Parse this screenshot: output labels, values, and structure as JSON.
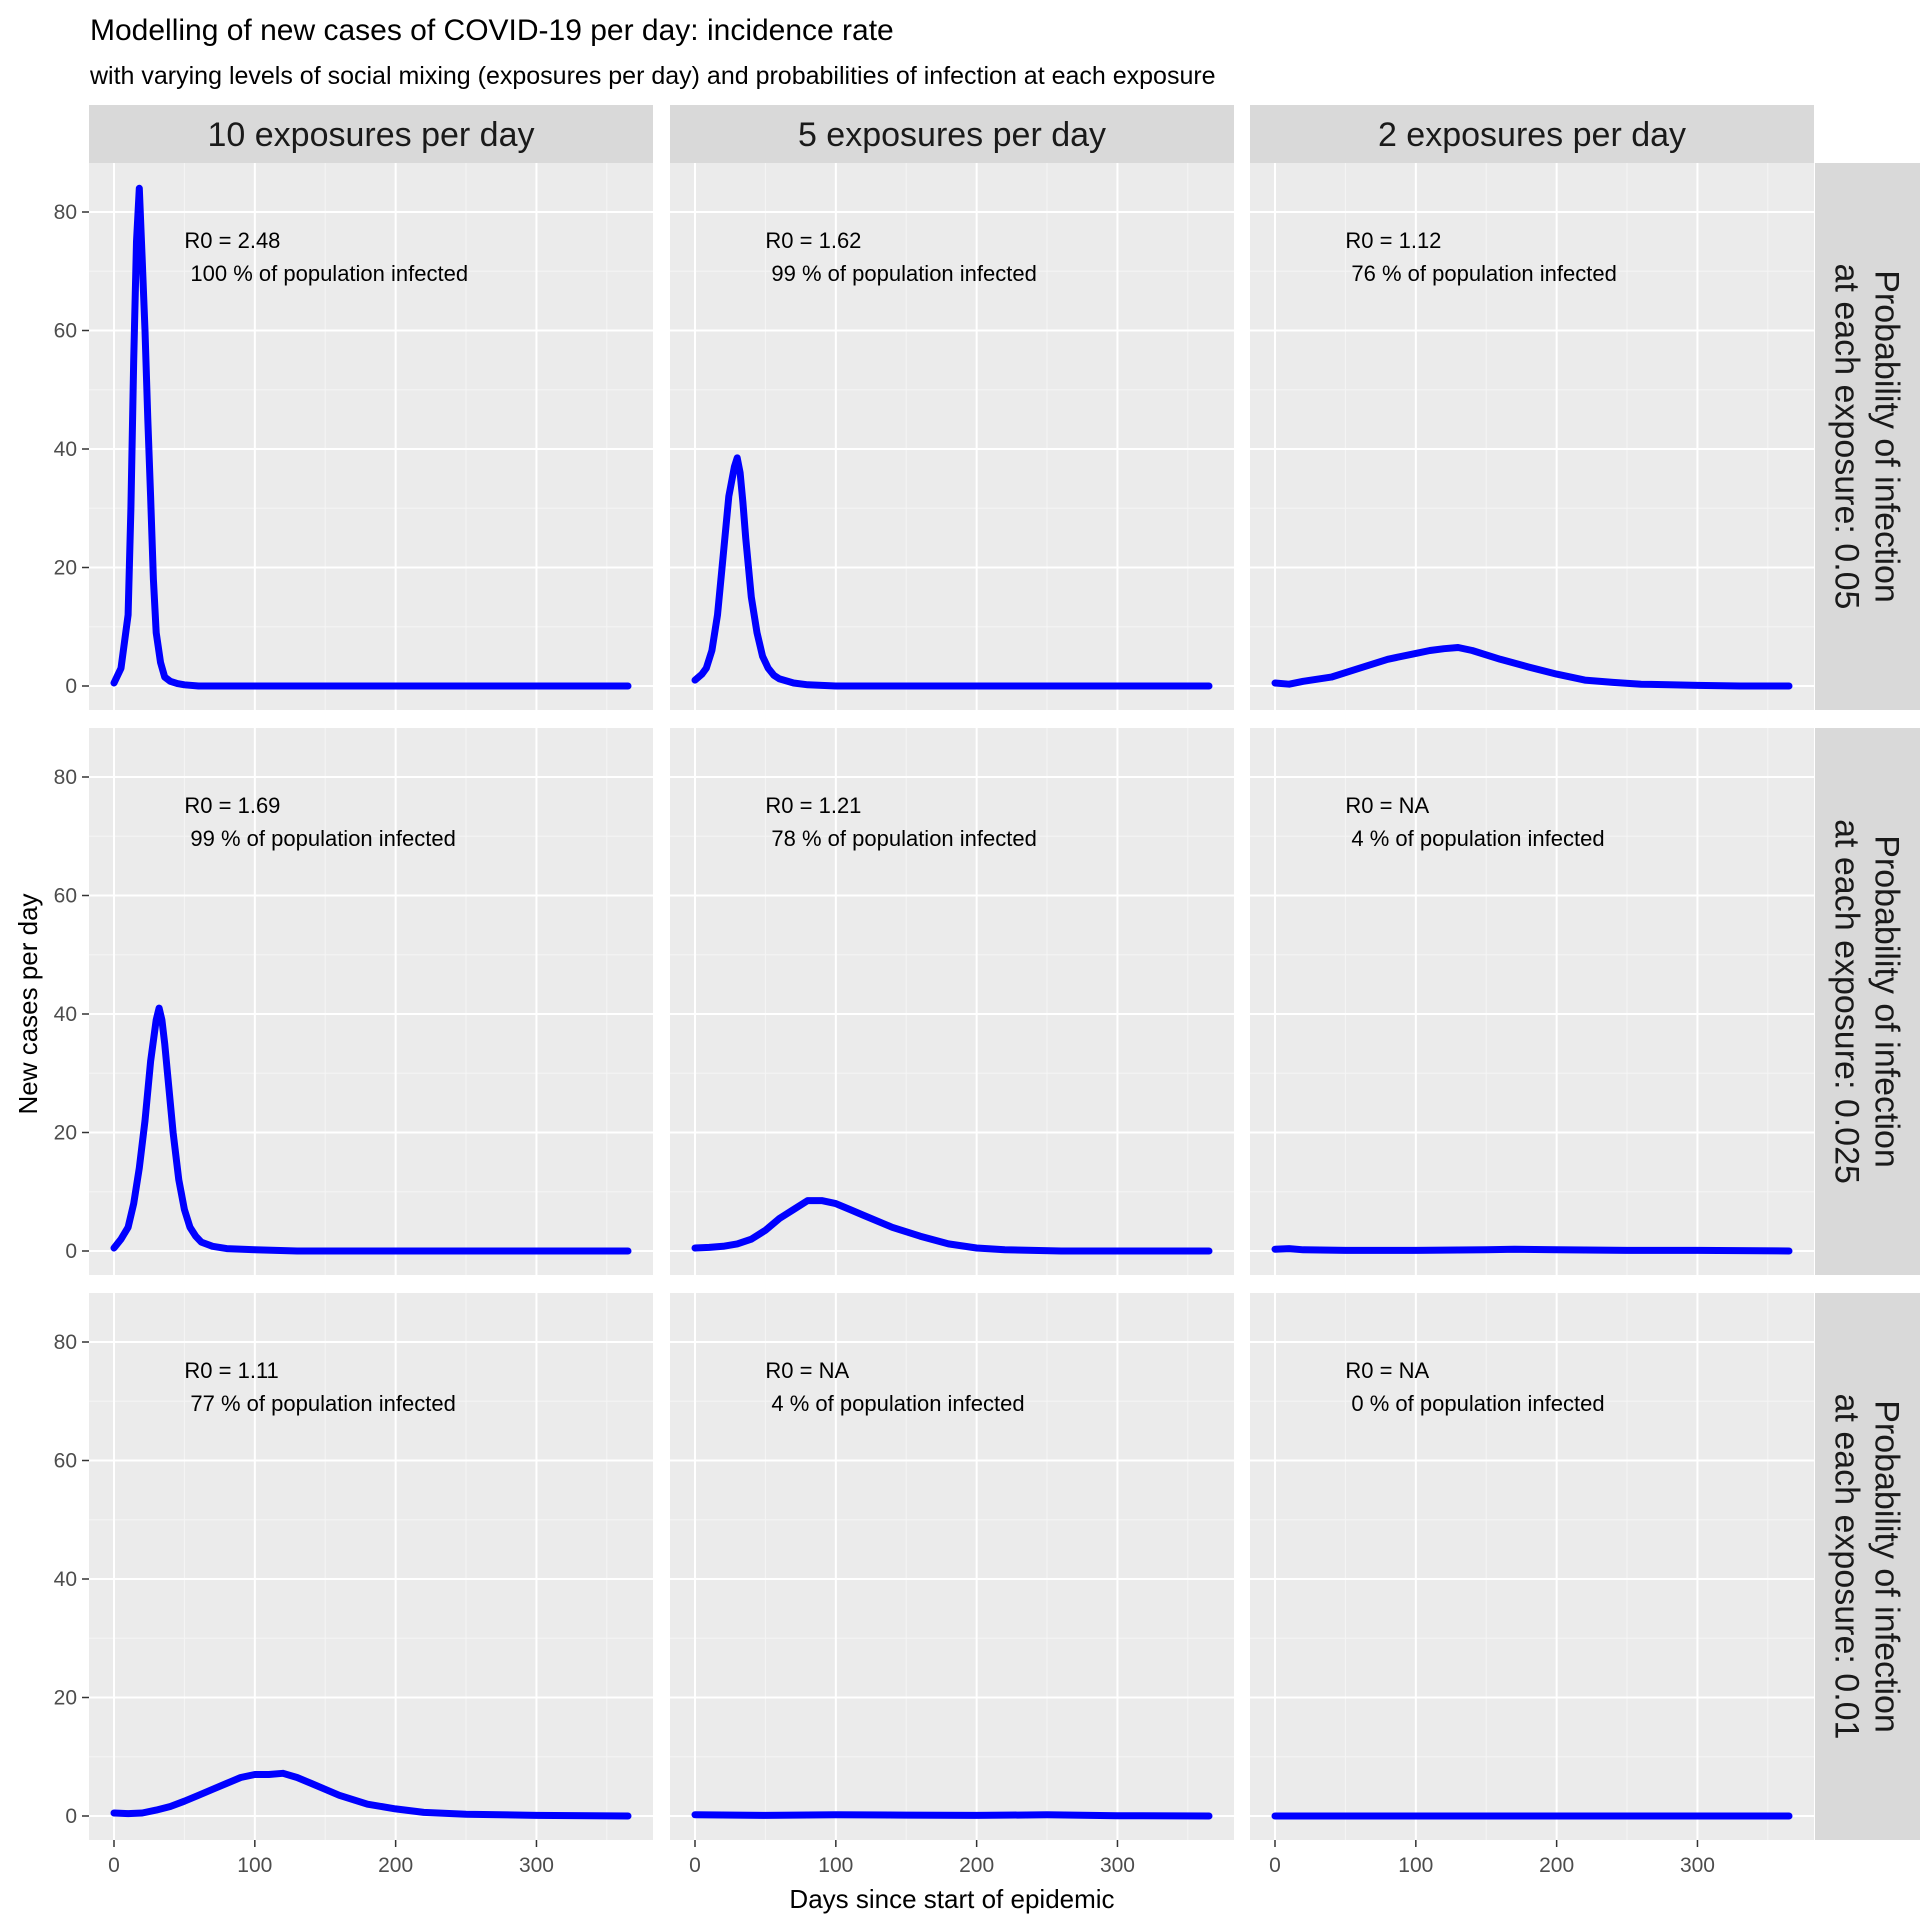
{
  "chart_data": {
    "type": "line",
    "title": "Modelling of new cases of COVID-19 per day: incidence rate",
    "subtitle": "with varying levels of social mixing (exposures per day) and probabilities of infection at each exposure",
    "xlabel": "Days since start of epidemic",
    "ylabel": "New cases per day",
    "xlim": [
      0,
      365
    ],
    "ylim": [
      0,
      85
    ],
    "x_ticks": [
      0,
      100,
      200,
      300
    ],
    "y_ticks": [
      0,
      20,
      40,
      60,
      80
    ],
    "grid": true,
    "line_color": "#0000ff",
    "panel_background": "#ebebeb",
    "strip_background": "#d9d9d9",
    "columns": [
      "10 exposures per day",
      "5 exposures per day",
      "2 exposures per day"
    ],
    "rows": [
      [
        "Probability of infection",
        "at each exposure: 0.05"
      ],
      [
        "Probability of infection",
        "at each exposure: 0.025"
      ],
      [
        "Probability of infection",
        "at each exposure: 0.01"
      ]
    ],
    "panels": [
      {
        "row": 0,
        "col": 0,
        "r0_label": "R0 = 2.48",
        "infected_label": "100 % of population infected",
        "x": [
          0,
          5,
          10,
          12,
          14,
          16,
          18,
          20,
          22,
          24,
          26,
          28,
          30,
          33,
          36,
          40,
          45,
          50,
          60,
          80,
          120,
          200,
          365
        ],
        "y": [
          0.5,
          3,
          12,
          30,
          55,
          75,
          84,
          72,
          60,
          45,
          32,
          18,
          9,
          4,
          1.5,
          0.8,
          0.4,
          0.2,
          0,
          0,
          0,
          0,
          0
        ]
      },
      {
        "row": 0,
        "col": 1,
        "r0_label": "R0 = 1.62",
        "infected_label": "99 % of population infected",
        "x": [
          0,
          5,
          8,
          12,
          16,
          20,
          24,
          28,
          30,
          32,
          34,
          36,
          40,
          44,
          48,
          52,
          56,
          60,
          70,
          80,
          100,
          150,
          365
        ],
        "y": [
          1,
          2,
          3,
          6,
          12,
          22,
          32,
          37,
          38.5,
          36,
          31,
          25,
          15,
          9,
          5,
          3,
          1.8,
          1.2,
          0.5,
          0.2,
          0,
          0,
          0
        ]
      },
      {
        "row": 0,
        "col": 2,
        "r0_label": "R0 = 1.12",
        "infected_label": "76 % of population infected",
        "x": [
          0,
          10,
          20,
          40,
          60,
          80,
          100,
          110,
          120,
          130,
          140,
          160,
          180,
          200,
          220,
          240,
          260,
          280,
          300,
          330,
          365
        ],
        "y": [
          0.5,
          0.3,
          0.8,
          1.5,
          3,
          4.5,
          5.5,
          6,
          6.3,
          6.5,
          6,
          4.5,
          3.2,
          2,
          1,
          0.6,
          0.3,
          0.2,
          0.1,
          0,
          0
        ]
      },
      {
        "row": 1,
        "col": 0,
        "r0_label": "R0 = 1.69",
        "infected_label": "99 % of population infected",
        "x": [
          0,
          5,
          10,
          14,
          18,
          22,
          26,
          30,
          32,
          34,
          36,
          38,
          42,
          46,
          50,
          54,
          58,
          62,
          70,
          80,
          100,
          130,
          365
        ],
        "y": [
          0.5,
          2,
          4,
          8,
          14,
          22,
          32,
          39,
          41,
          39,
          35,
          30,
          20,
          12,
          7,
          4,
          2.5,
          1.5,
          0.8,
          0.4,
          0.2,
          0,
          0
        ]
      },
      {
        "row": 1,
        "col": 1,
        "r0_label": "R0 = 1.21",
        "infected_label": "78 % of population infected",
        "x": [
          0,
          10,
          20,
          30,
          40,
          50,
          60,
          70,
          80,
          90,
          100,
          110,
          120,
          140,
          160,
          180,
          200,
          220,
          240,
          260,
          300,
          365
        ],
        "y": [
          0.5,
          0.6,
          0.8,
          1.2,
          2,
          3.5,
          5.5,
          7,
          8.5,
          8.5,
          8,
          7,
          6,
          4,
          2.5,
          1.2,
          0.5,
          0.2,
          0.1,
          0,
          0,
          0
        ]
      },
      {
        "row": 1,
        "col": 2,
        "r0_label": "R0 =   NA",
        "infected_label": "4 % of population infected",
        "x": [
          0,
          10,
          20,
          50,
          100,
          150,
          170,
          200,
          250,
          300,
          365
        ],
        "y": [
          0.3,
          0.4,
          0.2,
          0.1,
          0.1,
          0.2,
          0.3,
          0.2,
          0.1,
          0.1,
          0
        ]
      },
      {
        "row": 2,
        "col": 0,
        "r0_label": "R0 = 1.11",
        "infected_label": "77 % of population infected",
        "x": [
          0,
          10,
          20,
          30,
          40,
          50,
          60,
          70,
          80,
          90,
          100,
          110,
          120,
          130,
          140,
          150,
          160,
          180,
          200,
          220,
          250,
          300,
          365
        ],
        "y": [
          0.5,
          0.4,
          0.5,
          1,
          1.6,
          2.5,
          3.5,
          4.5,
          5.5,
          6.5,
          7,
          7,
          7.2,
          6.5,
          5.5,
          4.5,
          3.5,
          2,
          1.2,
          0.6,
          0.3,
          0.1,
          0
        ]
      },
      {
        "row": 2,
        "col": 1,
        "r0_label": "R0 =   NA",
        "infected_label": "4 % of population infected",
        "x": [
          0,
          50,
          100,
          150,
          200,
          250,
          300,
          365
        ],
        "y": [
          0.2,
          0.1,
          0.2,
          0.15,
          0.1,
          0.2,
          0.05,
          0
        ]
      },
      {
        "row": 2,
        "col": 2,
        "r0_label": "R0 =   NA",
        "infected_label": "0 % of population infected",
        "x": [
          0,
          365
        ],
        "y": [
          0,
          0
        ]
      }
    ]
  }
}
